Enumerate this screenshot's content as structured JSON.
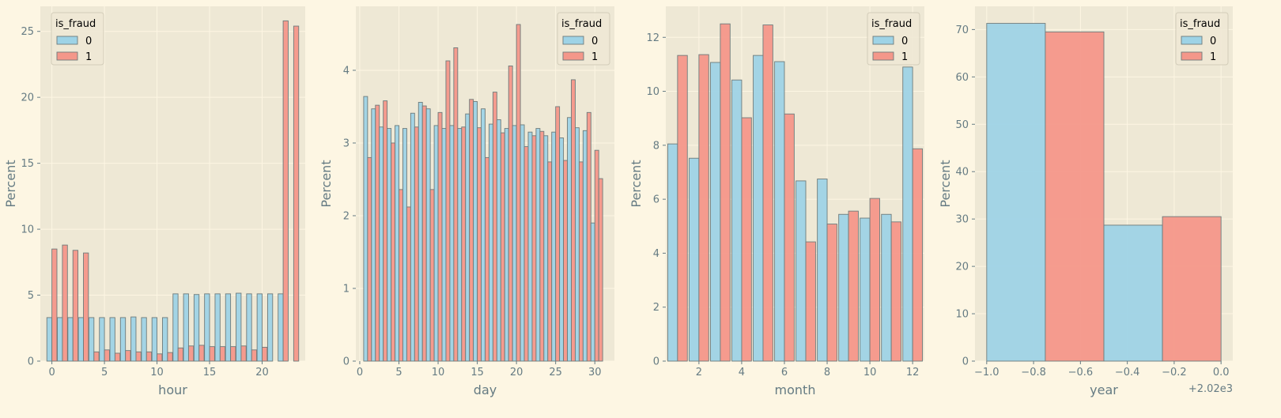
{
  "colors": {
    "figure_bg": "#fdf6e3",
    "axes_bg": "#eee8d5",
    "grid": "#fdf6e3",
    "series_0": "#9ed3e6",
    "series_1": "#f4978a",
    "edge": "#6e7b7b",
    "text": "#657b83"
  },
  "chart_data": [
    {
      "type": "bar",
      "xlabel": "hour",
      "ylabel": "Percent",
      "legend": {
        "title": "is_fraud",
        "position": "upper-left"
      },
      "xlim": [
        -1.1,
        24.1
      ],
      "ylim": [
        0,
        26.9
      ],
      "xticks": [
        0,
        5,
        10,
        15,
        20
      ],
      "yticks": [
        0,
        5,
        10,
        15,
        20,
        25
      ],
      "bin_width": 0.958,
      "x": [
        0,
        1,
        2,
        3,
        4,
        5,
        6,
        7,
        8,
        9,
        10,
        11,
        12,
        13,
        14,
        15,
        16,
        17,
        18,
        19,
        20,
        21,
        22,
        23
      ],
      "series": [
        {
          "name": "0",
          "values": [
            3.3,
            3.3,
            3.3,
            3.3,
            3.3,
            3.3,
            3.3,
            3.3,
            3.35,
            3.3,
            3.3,
            3.3,
            5.1,
            5.1,
            5.05,
            5.1,
            5.1,
            5.1,
            5.15,
            5.1,
            5.1,
            5.1,
            5.1,
            0
          ]
        },
        {
          "name": "1",
          "values": [
            8.5,
            8.8,
            8.4,
            8.2,
            0.7,
            0.85,
            0.6,
            0.8,
            0.7,
            0.7,
            0.55,
            0.65,
            1.0,
            1.15,
            1.2,
            1.1,
            1.1,
            1.1,
            1.15,
            0.85,
            1.05,
            0,
            25.8,
            25.4
          ]
        }
      ]
    },
    {
      "type": "bar",
      "xlabel": "day",
      "ylabel": "Percent",
      "legend": {
        "title": "is_fraud",
        "position": "upper-right"
      },
      "xlim": [
        -0.5,
        32.5
      ],
      "ylim": [
        0,
        4.88
      ],
      "xticks": [
        0,
        5,
        10,
        15,
        20,
        25,
        30
      ],
      "yticks": [
        0,
        1,
        2,
        3,
        4
      ],
      "bin_width": 1.0,
      "x": [
        1,
        2,
        3,
        4,
        5,
        6,
        7,
        8,
        9,
        10,
        11,
        12,
        13,
        14,
        15,
        16,
        17,
        18,
        19,
        20,
        21,
        22,
        23,
        24,
        25,
        26,
        27,
        28,
        29,
        30
      ],
      "series": [
        {
          "name": "0",
          "values": [
            3.64,
            3.47,
            3.22,
            3.2,
            3.24,
            3.2,
            3.41,
            3.56,
            3.47,
            3.24,
            3.2,
            3.24,
            3.2,
            3.4,
            3.57,
            3.47,
            3.26,
            3.32,
            3.2,
            3.24,
            3.25,
            3.15,
            3.2,
            3.1,
            3.15,
            3.07,
            3.35,
            3.21,
            3.17,
            1.9
          ]
        },
        {
          "name": "1",
          "values": [
            2.8,
            3.52,
            3.58,
            3.0,
            2.36,
            2.12,
            3.22,
            3.51,
            2.36,
            3.42,
            4.13,
            4.31,
            3.22,
            3.6,
            3.21,
            2.8,
            3.7,
            3.14,
            4.06,
            4.63,
            2.95,
            3.1,
            3.16,
            2.74,
            3.5,
            2.76,
            3.87,
            2.74,
            3.42,
            2.9
          ]
        }
      ],
      "last_bin_series_1": 2.51
    },
    {
      "type": "bar",
      "xlabel": "month",
      "ylabel": "Percent",
      "legend": {
        "title": "is_fraud",
        "position": "upper-right"
      },
      "xlim": [
        0.45,
        12.55
      ],
      "ylim": [
        0,
        13.15
      ],
      "xticks": [
        2,
        4,
        6,
        8,
        10,
        12
      ],
      "yticks": [
        0,
        2,
        4,
        6,
        8,
        10,
        12
      ],
      "bin_width": 0.917,
      "x": [
        1,
        2,
        3,
        4,
        5,
        6,
        7,
        8,
        9,
        10,
        11,
        12
      ],
      "series": [
        {
          "name": "0",
          "values": [
            8.05,
            7.52,
            11.07,
            10.42,
            11.33,
            11.1,
            6.68,
            6.75,
            5.44,
            5.3,
            5.44,
            10.9
          ]
        },
        {
          "name": "1",
          "values": [
            11.33,
            11.36,
            12.5,
            9.02,
            12.46,
            9.16,
            4.42,
            5.08,
            5.56,
            6.03,
            5.16,
            7.87
          ]
        }
      ]
    },
    {
      "type": "bar",
      "xlabel": "year",
      "ylabel": "Percent",
      "offset_text": "+2.02e3",
      "legend": {
        "title": "is_fraud",
        "position": "upper-right"
      },
      "xlim": [
        -1.05,
        0.05
      ],
      "ylim": [
        0,
        74.9
      ],
      "xticks": [
        -1.0,
        -0.8,
        -0.6,
        -0.4,
        -0.2,
        0.0
      ],
      "xtick_labels": [
        "−1.0",
        "−0.8",
        "−0.6",
        "−0.4",
        "−0.2",
        "0.0"
      ],
      "yticks": [
        0,
        10,
        20,
        30,
        40,
        50,
        60,
        70
      ],
      "bars": [
        {
          "series": "0",
          "x0": -1.0,
          "x1": -0.75,
          "value": 71.3
        },
        {
          "series": "1",
          "x0": -0.75,
          "x1": -0.5,
          "value": 69.5
        },
        {
          "series": "0",
          "x0": -0.5,
          "x1": -0.25,
          "value": 28.7
        },
        {
          "series": "1",
          "x0": -0.25,
          "x1": 0.0,
          "value": 30.5
        }
      ]
    }
  ]
}
